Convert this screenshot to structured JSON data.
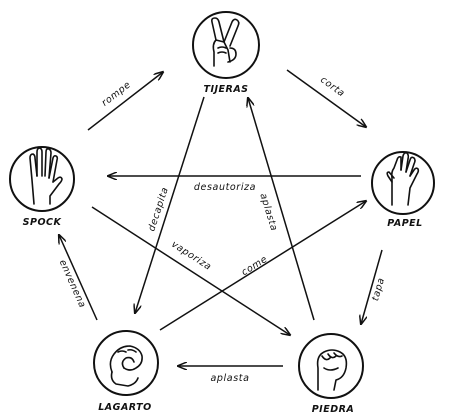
{
  "nodes": {
    "tijeras": {
      "label": "TIJERAS",
      "icon": "scissors-hand-icon"
    },
    "papel": {
      "label": "PAPEL",
      "icon": "paper-hand-icon"
    },
    "piedra": {
      "label": "PIEDRA",
      "icon": "rock-fist-icon"
    },
    "lagarto": {
      "label": "LAGARTO",
      "icon": "lizard-hand-icon"
    },
    "spock": {
      "label": "SPOCK",
      "icon": "vulcan-salute-icon"
    }
  },
  "edges": [
    {
      "from": "tijeras",
      "to": "papel",
      "label": "corta"
    },
    {
      "from": "papel",
      "to": "piedra",
      "label": "tapa"
    },
    {
      "from": "piedra",
      "to": "lagarto",
      "label": "aplasta"
    },
    {
      "from": "lagarto",
      "to": "spock",
      "label": "envenena"
    },
    {
      "from": "spock",
      "to": "tijeras",
      "label": "rompe"
    },
    {
      "from": "tijeras",
      "to": "lagarto",
      "label": "decapita"
    },
    {
      "from": "lagarto",
      "to": "papel",
      "label": "come"
    },
    {
      "from": "papel",
      "to": "spock",
      "label": "desautoriza"
    },
    {
      "from": "spock",
      "to": "piedra",
      "label": "vaporiza"
    },
    {
      "from": "piedra",
      "to": "tijeras",
      "label": "aplasta"
    }
  ]
}
